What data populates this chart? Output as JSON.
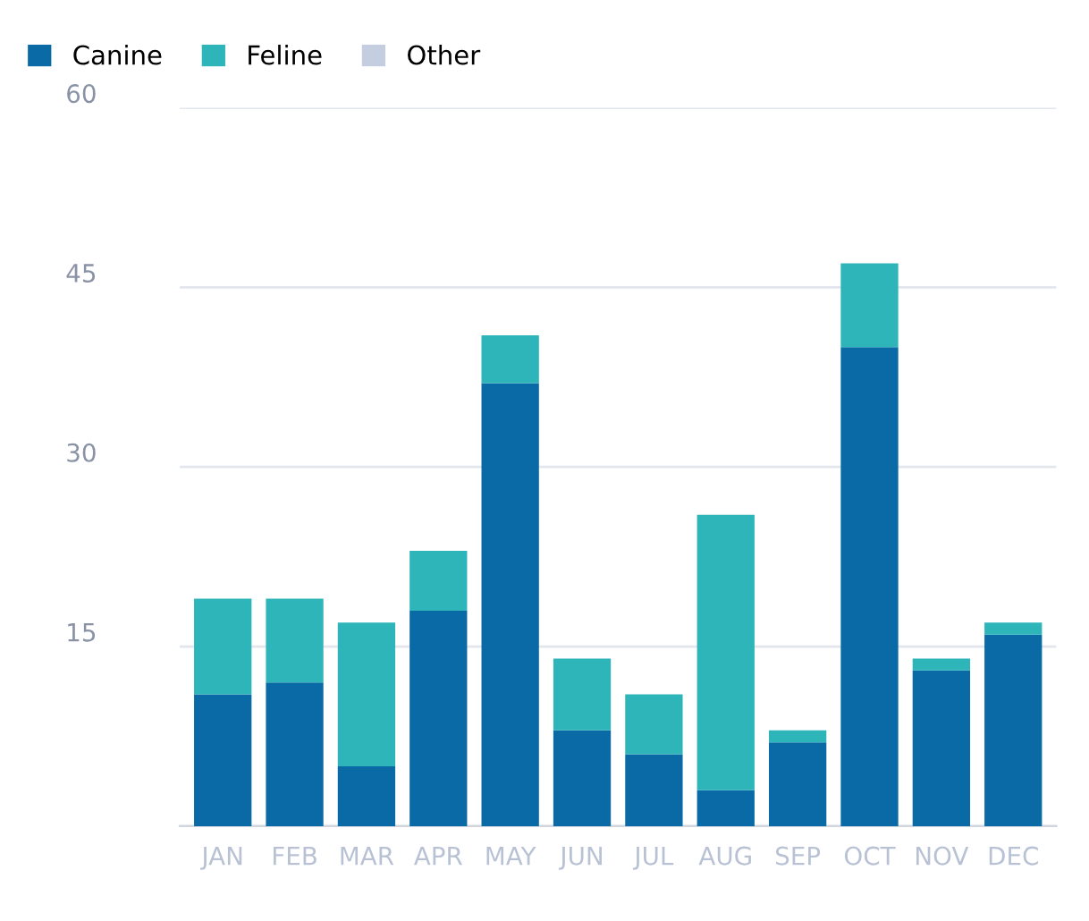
{
  "chart_data": {
    "type": "bar",
    "stacked": true,
    "categories": [
      "JAN",
      "FEB",
      "MAR",
      "APR",
      "MAY",
      "JUN",
      "JUL",
      "AUG",
      "SEP",
      "OCT",
      "NOV",
      "DEC"
    ],
    "series": [
      {
        "name": "Canine",
        "color": "#0a6aa6",
        "values": [
          11,
          12,
          5,
          18,
          37,
          8,
          6,
          3,
          7,
          40,
          13,
          16
        ]
      },
      {
        "name": "Feline",
        "color": "#2eb5b9",
        "values": [
          8,
          7,
          12,
          5,
          4,
          6,
          5,
          23,
          1,
          7,
          1,
          1
        ]
      },
      {
        "name": "Other",
        "color": "#c5cde0",
        "values": [
          0,
          0,
          0,
          0,
          0,
          0,
          0,
          0,
          0,
          0,
          0,
          0
        ]
      }
    ],
    "ylim": [
      0,
      60
    ],
    "yticks": [
      {
        "value": 0,
        "label": null
      },
      15,
      30,
      45,
      60
    ],
    "grid": "y",
    "legend": "top left"
  }
}
